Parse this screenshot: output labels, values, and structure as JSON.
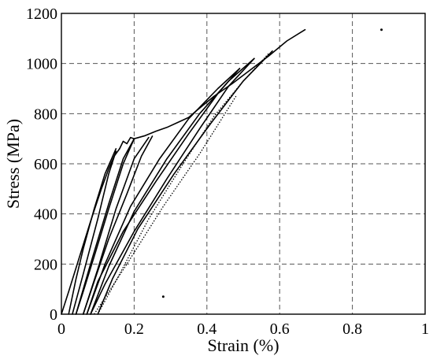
{
  "chart_data": {
    "type": "line",
    "title": "",
    "xlabel": "Strain (%)",
    "ylabel": "Stress (MPa)",
    "xlim": [
      0,
      1
    ],
    "ylim": [
      0,
      1200
    ],
    "xticks": [
      0,
      0.2,
      0.4,
      0.6,
      0.8,
      1
    ],
    "xtick_labels": [
      "0",
      "0.2",
      "0.4",
      "0.6",
      "0.8",
      "1"
    ],
    "yticks": [
      0,
      200,
      400,
      600,
      800,
      1000,
      1200
    ],
    "ytick_labels": [
      "0",
      "200",
      "400",
      "600",
      "800",
      "1000",
      "1200"
    ],
    "grid": true,
    "series": [
      {
        "style": "solid",
        "x": [
          0,
          0.02,
          0.05,
          0.08,
          0.11,
          0.13,
          0.145,
          0.16
        ],
        "y": [
          0,
          90,
          230,
          370,
          500,
          580,
          630,
          660
        ]
      },
      {
        "style": "solid",
        "x": [
          0.16,
          0.17,
          0.18,
          0.19,
          0.2
        ],
        "y": [
          660,
          690,
          680,
          705,
          700
        ]
      },
      {
        "style": "solid",
        "x": [
          0.2,
          0.23,
          0.26,
          0.29,
          0.32,
          0.35,
          0.37
        ],
        "y": [
          700,
          712,
          730,
          745,
          765,
          785,
          810
        ]
      },
      {
        "style": "solid",
        "x": [
          0.37,
          0.42,
          0.47,
          0.52,
          0.57,
          0.62,
          0.67
        ],
        "y": [
          810,
          870,
          920,
          975,
          1030,
          1090,
          1135
        ]
      },
      {
        "style": "solid",
        "x": [
          0.15,
          0.12,
          0.09,
          0.06,
          0.04,
          0.02
        ],
        "y": [
          660,
          560,
          420,
          260,
          140,
          0
        ]
      },
      {
        "style": "solid",
        "x": [
          0.03,
          0.06,
          0.1,
          0.13,
          0.15
        ],
        "y": [
          0,
          160,
          380,
          560,
          650
        ]
      },
      {
        "style": "solid",
        "x": [
          0.2,
          0.17,
          0.13,
          0.09,
          0.06,
          0.04
        ],
        "y": [
          700,
          600,
          420,
          230,
          90,
          0
        ]
      },
      {
        "style": "solid",
        "x": [
          0.04,
          0.08,
          0.13,
          0.17,
          0.2
        ],
        "y": [
          0,
          200,
          440,
          620,
          700
        ]
      },
      {
        "style": "solid",
        "x": [
          0.25,
          0.22,
          0.18,
          0.13,
          0.09,
          0.06
        ],
        "y": [
          710,
          630,
          480,
          300,
          130,
          0
        ]
      },
      {
        "style": "solid",
        "x": [
          0.06,
          0.1,
          0.15,
          0.2,
          0.24
        ],
        "y": [
          0,
          180,
          420,
          620,
          705
        ]
      },
      {
        "style": "solid",
        "x": [
          0.49,
          0.43,
          0.35,
          0.26,
          0.17,
          0.1,
          0.07
        ],
        "y": [
          980,
          880,
          720,
          530,
          330,
          130,
          0
        ]
      },
      {
        "style": "solid",
        "x": [
          0.07,
          0.12,
          0.19,
          0.27,
          0.35,
          0.43,
          0.49
        ],
        "y": [
          0,
          200,
          430,
          620,
          780,
          900,
          980
        ]
      },
      {
        "style": "solid",
        "x": [
          0.53,
          0.46,
          0.38,
          0.29,
          0.2,
          0.12,
          0.08
        ],
        "y": [
          1020,
          910,
          740,
          540,
          330,
          120,
          0
        ]
      },
      {
        "style": "solid",
        "x": [
          0.08,
          0.13,
          0.2,
          0.29,
          0.38,
          0.46,
          0.53
        ],
        "y": [
          0,
          190,
          410,
          620,
          800,
          930,
          1020
        ]
      },
      {
        "style": "solid",
        "x": [
          0.58,
          0.5,
          0.41,
          0.31,
          0.21,
          0.14,
          0.1
        ],
        "y": [
          1050,
          930,
          760,
          560,
          340,
          140,
          0
        ]
      },
      {
        "style": "dotted",
        "x": [
          0.1,
          0.16,
          0.24,
          0.33,
          0.42,
          0.5,
          0.57
        ],
        "y": [
          0,
          160,
          380,
          590,
          790,
          930,
          1040
        ]
      },
      {
        "style": "dotted",
        "x": [
          0.09,
          0.18,
          0.28,
          0.38,
          0.48
        ],
        "y": [
          0,
          200,
          430,
          640,
          870
        ]
      }
    ],
    "points": [
      {
        "x": 0.28,
        "y": 70
      },
      {
        "x": 0.88,
        "y": 1135
      }
    ]
  }
}
